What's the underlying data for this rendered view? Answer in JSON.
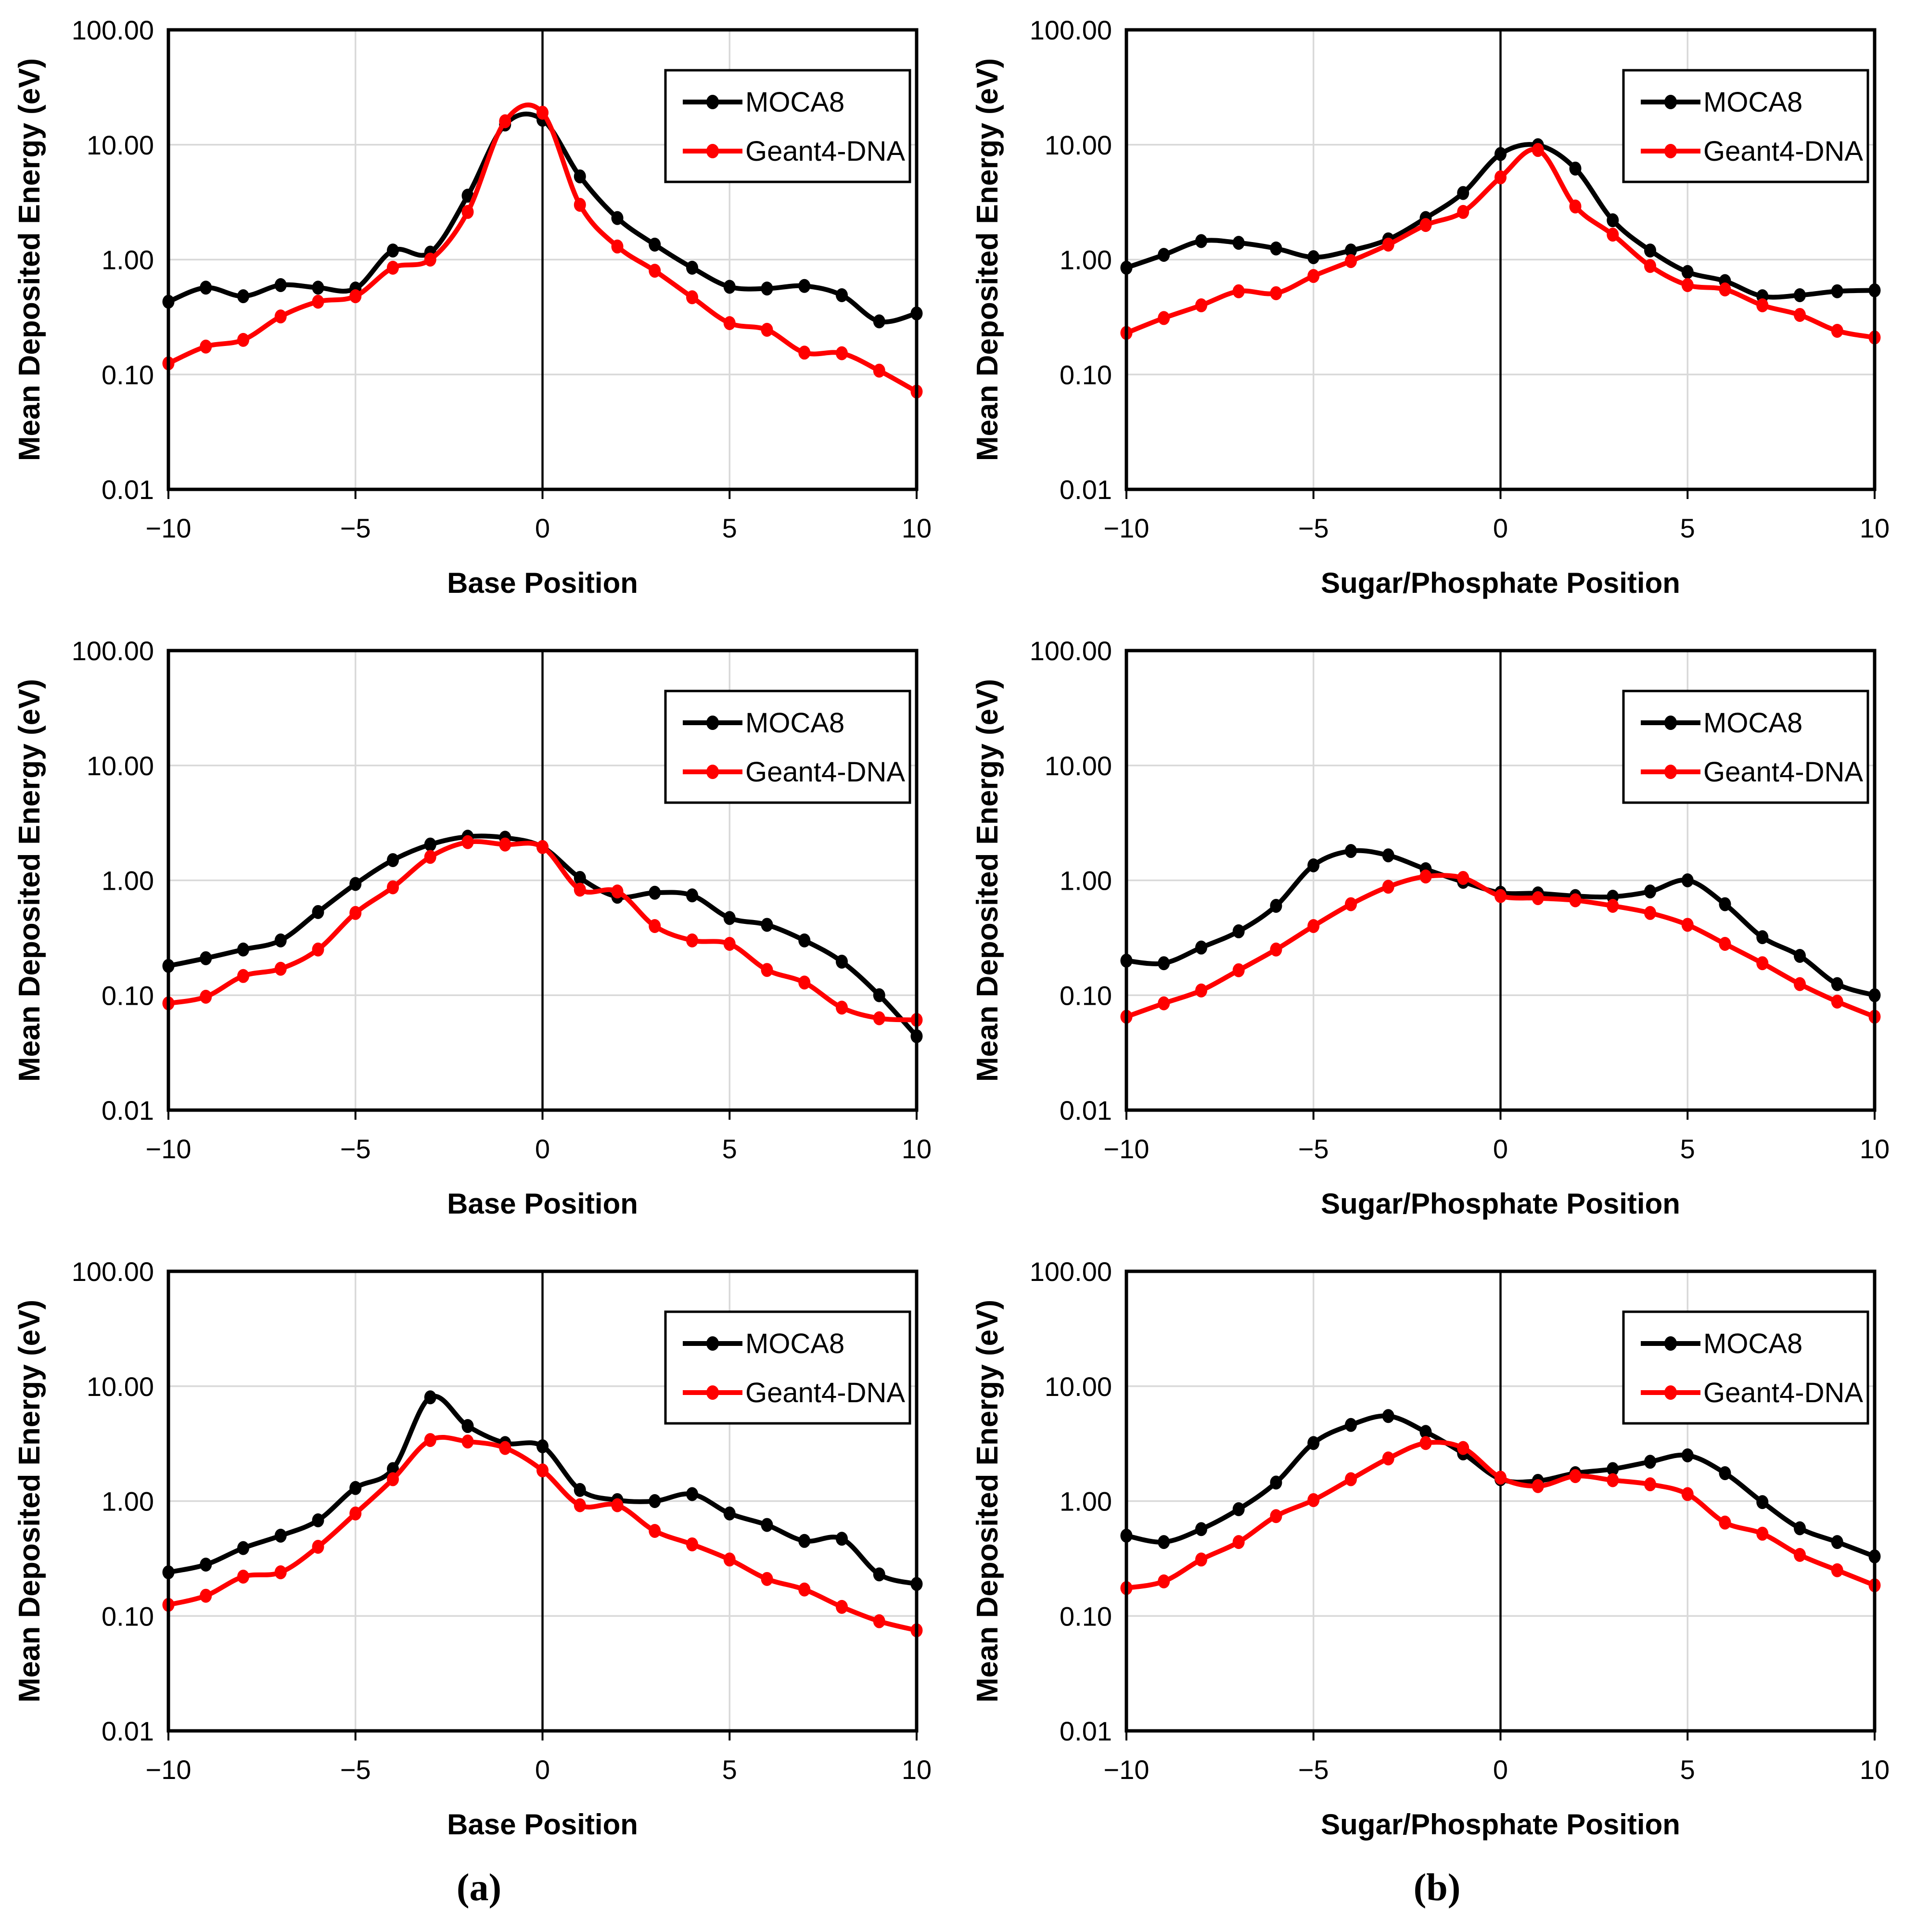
{
  "figure": {
    "captions": [
      {
        "label": "(a)"
      },
      {
        "label": "(b)"
      }
    ],
    "legend": {
      "entries": [
        "MOCA8",
        "Geant4-DNA"
      ],
      "position": "top-right"
    },
    "colors": {
      "moca8": "#000000",
      "geant4_dna": "#FF0000",
      "gridline": "#D9D9D9",
      "axis": "#000000",
      "background": "#FFFFFF"
    },
    "y_axis": {
      "label": "Mean Deposited Energy (eV)",
      "scale": "log",
      "range": [
        0.01,
        100
      ],
      "tick_labels": [
        "100.00",
        "10.00",
        "1.00",
        "0.10",
        "0.01"
      ],
      "tick_values": [
        100,
        10,
        1,
        0.1,
        0.01
      ]
    },
    "x_axis": {
      "range": [
        -10,
        10
      ],
      "tick_labels": [
        "−10",
        "−5",
        "0",
        "5",
        "10"
      ],
      "tick_values": [
        -10,
        -5,
        0,
        5,
        10
      ]
    }
  },
  "chart_data": [
    {
      "id": "a1",
      "type": "line",
      "grid": true,
      "row": 1,
      "col": 1,
      "xlabel": "Base Position",
      "ylabel": "Mean Deposited Energy (eV)",
      "x": [
        -10,
        -9,
        -8,
        -7,
        -6,
        -5,
        -4,
        -3,
        -2,
        -1,
        0,
        1,
        2,
        3,
        4,
        5,
        6,
        7,
        8,
        9,
        10
      ],
      "ylim": [
        0.01,
        100
      ],
      "series": [
        {
          "name": "MOCA8",
          "color": "#000000",
          "values": [
            0.43,
            0.57,
            0.48,
            0.6,
            0.57,
            0.56,
            1.2,
            1.15,
            3.6,
            15.0,
            16.5,
            5.3,
            2.3,
            1.35,
            0.85,
            0.58,
            0.56,
            0.59,
            0.49,
            0.29,
            0.34
          ]
        },
        {
          "name": "Geant4-DNA",
          "color": "#FF0000",
          "values": [
            0.125,
            0.175,
            0.2,
            0.32,
            0.43,
            0.48,
            0.85,
            1.0,
            2.6,
            16.0,
            19.0,
            3.0,
            1.3,
            0.8,
            0.47,
            0.28,
            0.245,
            0.155,
            0.153,
            0.108,
            0.071
          ]
        }
      ]
    },
    {
      "id": "b1",
      "type": "line",
      "grid": true,
      "row": 1,
      "col": 2,
      "xlabel": "Sugar/Phosphate Position",
      "ylabel": "Mean Deposited Energy (eV)",
      "x": [
        -10,
        -9,
        -8,
        -7,
        -6,
        -5,
        -4,
        -3,
        -2,
        -1,
        0,
        1,
        2,
        3,
        4,
        5,
        6,
        7,
        8,
        9,
        10
      ],
      "ylim": [
        0.01,
        100
      ],
      "series": [
        {
          "name": "MOCA8",
          "color": "#000000",
          "values": [
            0.85,
            1.1,
            1.45,
            1.4,
            1.25,
            1.05,
            1.2,
            1.5,
            2.3,
            3.8,
            8.3,
            9.9,
            6.2,
            2.2,
            1.2,
            0.78,
            0.65,
            0.48,
            0.49,
            0.53,
            0.54
          ]
        },
        {
          "name": "Geant4-DNA",
          "color": "#FF0000",
          "values": [
            0.23,
            0.31,
            0.4,
            0.53,
            0.51,
            0.72,
            0.97,
            1.35,
            2.0,
            2.6,
            5.2,
            9.0,
            2.9,
            1.65,
            0.88,
            0.6,
            0.55,
            0.4,
            0.33,
            0.24,
            0.21
          ]
        }
      ]
    },
    {
      "id": "a2",
      "type": "line",
      "grid": true,
      "row": 2,
      "col": 1,
      "xlabel": "Base Position",
      "ylabel": "Mean Deposited Energy (eV)",
      "x": [
        -10,
        -9,
        -8,
        -7,
        -6,
        -5,
        -4,
        -3,
        -2,
        -1,
        0,
        1,
        2,
        3,
        4,
        5,
        6,
        7,
        8,
        9,
        10
      ],
      "ylim": [
        0.01,
        100
      ],
      "series": [
        {
          "name": "MOCA8",
          "color": "#000000",
          "values": [
            0.18,
            0.21,
            0.25,
            0.3,
            0.53,
            0.93,
            1.5,
            2.05,
            2.4,
            2.35,
            1.95,
            1.05,
            0.72,
            0.78,
            0.74,
            0.47,
            0.41,
            0.3,
            0.196,
            0.1,
            0.044
          ]
        },
        {
          "name": "Geant4-DNA",
          "color": "#FF0000",
          "values": [
            0.085,
            0.097,
            0.147,
            0.17,
            0.25,
            0.52,
            0.87,
            1.6,
            2.15,
            2.05,
            1.95,
            0.83,
            0.8,
            0.4,
            0.3,
            0.28,
            0.166,
            0.129,
            0.078,
            0.063,
            0.061
          ]
        }
      ]
    },
    {
      "id": "b2",
      "type": "line",
      "grid": true,
      "row": 2,
      "col": 2,
      "xlabel": "Sugar/Phosphate Position",
      "ylabel": "Mean Deposited Energy (eV)",
      "x": [
        -10,
        -9,
        -8,
        -7,
        -6,
        -5,
        -4,
        -3,
        -2,
        -1,
        0,
        1,
        2,
        3,
        4,
        5,
        6,
        7,
        8,
        9,
        10
      ],
      "ylim": [
        0.01,
        100
      ],
      "series": [
        {
          "name": "MOCA8",
          "color": "#000000",
          "values": [
            0.2,
            0.19,
            0.26,
            0.36,
            0.6,
            1.35,
            1.8,
            1.65,
            1.25,
            0.97,
            0.78,
            0.77,
            0.73,
            0.72,
            0.8,
            1.0,
            0.62,
            0.32,
            0.22,
            0.125,
            0.1
          ]
        },
        {
          "name": "Geant4-DNA",
          "color": "#FF0000",
          "values": [
            0.065,
            0.085,
            0.11,
            0.165,
            0.25,
            0.4,
            0.62,
            0.88,
            1.08,
            1.05,
            0.73,
            0.7,
            0.67,
            0.6,
            0.52,
            0.41,
            0.28,
            0.19,
            0.125,
            0.088,
            0.065
          ]
        }
      ]
    },
    {
      "id": "a3",
      "type": "line",
      "grid": true,
      "row": 3,
      "col": 1,
      "xlabel": "Base Position",
      "ylabel": "Mean Deposited Energy (eV)",
      "x": [
        -10,
        -9,
        -8,
        -7,
        -6,
        -5,
        -4,
        -3,
        -2,
        -1,
        0,
        1,
        2,
        3,
        4,
        5,
        6,
        7,
        8,
        9,
        10
      ],
      "ylim": [
        0.01,
        100
      ],
      "series": [
        {
          "name": "MOCA8",
          "color": "#000000",
          "values": [
            0.24,
            0.28,
            0.39,
            0.5,
            0.68,
            1.3,
            1.9,
            8.0,
            4.5,
            3.2,
            3.0,
            1.25,
            1.02,
            1.0,
            1.15,
            0.78,
            0.62,
            0.45,
            0.47,
            0.23,
            0.19
          ]
        },
        {
          "name": "Geant4-DNA",
          "color": "#FF0000",
          "values": [
            0.125,
            0.15,
            0.22,
            0.24,
            0.4,
            0.78,
            1.55,
            3.4,
            3.3,
            2.9,
            1.85,
            0.92,
            0.92,
            0.55,
            0.42,
            0.31,
            0.21,
            0.17,
            0.12,
            0.09,
            0.075
          ]
        }
      ]
    },
    {
      "id": "b3",
      "type": "line",
      "grid": true,
      "row": 3,
      "col": 2,
      "xlabel": "Sugar/Phosphate Position",
      "ylabel": "Mean Deposited Energy (eV)",
      "x": [
        -10,
        -9,
        -8,
        -7,
        -6,
        -5,
        -4,
        -3,
        -2,
        -1,
        0,
        1,
        2,
        3,
        4,
        5,
        6,
        7,
        8,
        9,
        10
      ],
      "ylim": [
        0.01,
        100
      ],
      "series": [
        {
          "name": "MOCA8",
          "color": "#000000",
          "values": [
            0.5,
            0.44,
            0.57,
            0.85,
            1.45,
            3.2,
            4.6,
            5.5,
            4.0,
            2.6,
            1.55,
            1.5,
            1.75,
            1.9,
            2.2,
            2.5,
            1.75,
            0.98,
            0.58,
            0.44,
            0.33
          ]
        },
        {
          "name": "Geant4-DNA",
          "color": "#FF0000",
          "values": [
            0.175,
            0.2,
            0.31,
            0.44,
            0.74,
            1.02,
            1.55,
            2.35,
            3.2,
            2.9,
            1.6,
            1.35,
            1.65,
            1.52,
            1.4,
            1.15,
            0.65,
            0.52,
            0.34,
            0.25,
            0.185
          ]
        }
      ]
    }
  ]
}
